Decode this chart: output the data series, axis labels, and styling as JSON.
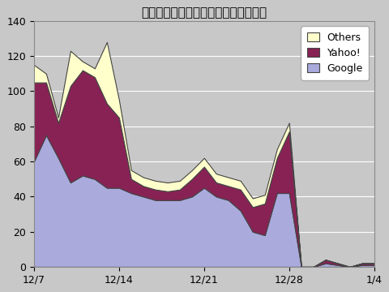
{
  "title": "「ソーテック」で検索して訪問した数",
  "x_labels": [
    "12/7",
    "12/14",
    "12/21",
    "12/28",
    "1/4"
  ],
  "x_tick_positions": [
    0,
    7,
    14,
    21,
    28
  ],
  "ylim": [
    0,
    140
  ],
  "yticks": [
    0,
    20,
    40,
    60,
    80,
    100,
    120,
    140
  ],
  "google": [
    60,
    75,
    62,
    48,
    52,
    50,
    45,
    45,
    42,
    40,
    38,
    38,
    38,
    40,
    45,
    40,
    38,
    32,
    20,
    18,
    42,
    42,
    0,
    0,
    2,
    1,
    0,
    1,
    1
  ],
  "yahoo": [
    45,
    30,
    20,
    55,
    60,
    58,
    48,
    40,
    8,
    6,
    6,
    5,
    6,
    10,
    12,
    8,
    8,
    12,
    14,
    18,
    20,
    35,
    0,
    0,
    2,
    1,
    0,
    1,
    1
  ],
  "others": [
    10,
    5,
    3,
    20,
    5,
    5,
    35,
    10,
    5,
    5,
    5,
    5,
    5,
    5,
    5,
    5,
    5,
    5,
    5,
    5,
    5,
    5,
    0,
    0,
    0,
    0,
    0,
    0,
    0
  ],
  "color_google": "#aaaadd",
  "color_yahoo": "#882255",
  "color_others": "#ffffcc",
  "color_bg_plot": "#c8c8c8",
  "color_bg_fig": "#c8c8c8",
  "figsize": [
    4.8,
    3.6
  ],
  "dpi": 100
}
